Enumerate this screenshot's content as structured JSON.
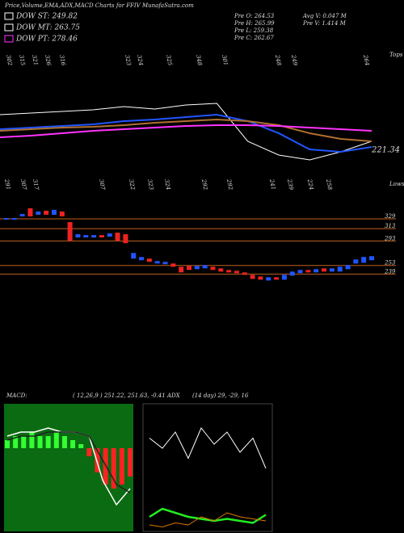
{
  "header": {
    "title": "Price,Volume,EMA,ADX,MACD Charts for FFIV MunafaSutra.com",
    "legend": [
      {
        "label": "DOW ST: 249.82",
        "color": "#ffffff"
      },
      {
        "label": "DOW MT: 263.75",
        "color": "#ffffff"
      },
      {
        "label": "DOW PT: 278.46",
        "color": "#ff33ff"
      }
    ],
    "stats": [
      "Pre  O: 264.53",
      "Pre  H: 265.99",
      "Pre  L: 259.38",
      "Pre  C: 262.67"
    ],
    "volume": [
      "Avg  V: 0.047 M",
      "Pre  V: 1.414  M"
    ]
  },
  "chart_data": [
    {
      "type": "line",
      "ylim": [
        200,
        360
      ],
      "tops_label": "Tops",
      "tops": [
        "302",
        "315",
        "321",
        "326",
        "316",
        "323",
        "324",
        "325",
        "348",
        "301",
        "248",
        "249",
        "264"
      ],
      "lows_label": "Lows",
      "lows": [
        "291",
        "307",
        "317",
        "307",
        "322",
        "323",
        "324",
        "292",
        "292",
        "241",
        "239",
        "224",
        "258"
      ],
      "price_label": "221.34",
      "series": [
        {
          "color": "#ffffff",
          "values": [
            283.2,
            285.3,
            287.5,
            289.6,
            293.9,
            290.7,
            296,
            298.1,
            248,
            229.9,
            223.5,
            234.1,
            248
          ]
        },
        {
          "color": "#2255ff",
          "values": [
            264,
            266.1,
            268.3,
            270.4,
            274.7,
            276.8,
            280,
            283.2,
            274.7,
            258.7,
            237.3,
            234.1,
            240.5
          ]
        },
        {
          "color": "#b07030",
          "values": [
            261.9,
            264,
            266.1,
            267.2,
            269.3,
            272.5,
            274.7,
            276.8,
            274.7,
            269.3,
            258.7,
            251.2,
            248
          ]
        },
        {
          "color": "#ff33ff",
          "values": [
            253.3,
            255.5,
            258.7,
            261.9,
            264,
            266.1,
            268.3,
            269.3,
            269.3,
            268.3,
            266.1,
            264,
            261.9
          ]
        }
      ]
    },
    {
      "type": "candlestick",
      "ylim": [
        225,
        350
      ],
      "levels": [
        329,
        313,
        293,
        253,
        239
      ],
      "level_color": "#c06020",
      "up_color": "#2255ff",
      "down_color": "#ee2222",
      "open": [
        327.7,
        327.7,
        333,
        346.2,
        335.6,
        342.2,
        335.6,
        340.9,
        323.7,
        298.6,
        298.6,
        298.6,
        302.5,
        299.9,
        306.5,
        303.9,
        264.2,
        261.5,
        264.2,
        256.2,
        254.9,
        256.2,
        250.9,
        252.3,
        247,
        248.3,
        250.9,
        248.3,
        245.7,
        244.3,
        241.7,
        237.7,
        235.1,
        228.5,
        233.8,
        229.8,
        236.4,
        240.4,
        245.7,
        241.7,
        248.3,
        243,
        243,
        246.9,
        256.2,
        257.5,
        261.5
      ],
      "close": [
        330.3,
        330.3,
        336.9,
        333,
        340.9,
        335.6,
        343.6,
        333,
        293.3,
        303.9,
        302.5,
        302.5,
        298.6,
        305.2,
        293.3,
        289.3,
        273.4,
        266.8,
        258.9,
        260.2,
        258.9,
        250.9,
        241.7,
        245.7,
        252.3,
        253.6,
        245.7,
        243,
        241.7,
        240.4,
        237.7,
        231.1,
        229.8,
        233.8,
        229.8,
        237.7,
        243,
        245.7,
        241.7,
        247,
        243,
        248.3,
        251,
        253.6,
        262.8,
        266.8,
        268.1
      ]
    },
    {
      "type": "macd",
      "title": "MACD:",
      "params": "( 12,26,9 ) 251.22,  251.63,  -0.41 ADX",
      "ylim": [
        -20,
        10
      ],
      "background": "#0b6b12",
      "histogram": [
        2,
        3,
        3,
        4,
        3,
        3,
        4,
        3,
        2,
        1,
        -2,
        -6,
        -9,
        -10,
        -9,
        -7
      ],
      "series": [
        {
          "color": "#ffffff",
          "values": [
            3,
            4,
            4,
            5,
            4,
            4,
            3,
            -8,
            -14,
            -10
          ]
        },
        {
          "color": "#222222",
          "values": [
            2,
            3,
            3,
            4,
            4,
            4,
            3,
            -3,
            -9,
            -11
          ]
        }
      ]
    },
    {
      "type": "adx",
      "params": "(14  day) 29,   -29,   16",
      "ylim": [
        0,
        60
      ],
      "series": [
        {
          "color": "#ffffff",
          "values": [
            45,
            40,
            48,
            35,
            50,
            42,
            48,
            38,
            45,
            30
          ]
        },
        {
          "color": "#22ee22",
          "values": [
            6,
            10,
            8,
            6,
            5,
            4,
            5,
            4,
            3,
            7
          ]
        },
        {
          "color": "#dd7700",
          "values": [
            2,
            1,
            3,
            2,
            6,
            4,
            8,
            6,
            5,
            4
          ]
        }
      ]
    }
  ]
}
